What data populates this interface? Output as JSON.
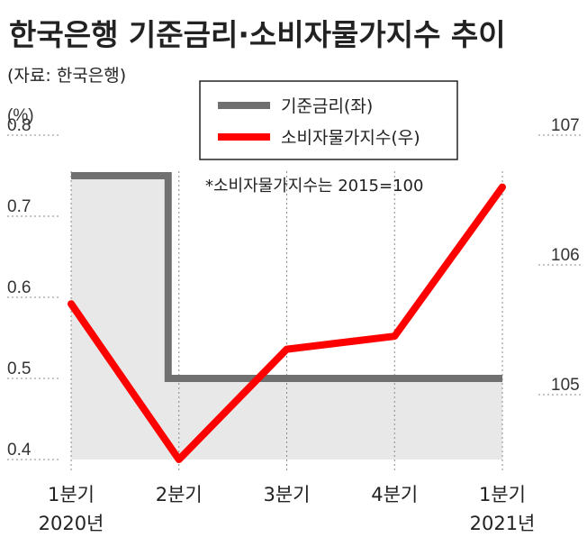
{
  "header": {
    "title": "한국은행 기준금리·소비자물가지수 추이",
    "source": "(자료: 한국은행)"
  },
  "legend": {
    "items": [
      {
        "label": "기준금리(좌)",
        "color": "#707070"
      },
      {
        "label": "소비자물가지수(우)",
        "color": "#ff0000"
      }
    ],
    "placement": "top-center",
    "note": "*소비자물가지수는 2015=100"
  },
  "colors": {
    "area_fill": "#e8e8e8",
    "rate_line": "#707070",
    "cpi_line": "#ff0000"
  },
  "chart_data": {
    "type": "line",
    "categories": [
      "1분기",
      "2분기",
      "3분기",
      "4분기",
      "1분기"
    ],
    "category_years": [
      "2020년",
      "",
      "",
      "",
      "2021년"
    ],
    "left_axis": {
      "unit": "(%)",
      "ylim": [
        0.4,
        0.8
      ],
      "ticks": [
        "0.8",
        "0.7",
        "0.6",
        "0.5",
        "0.4"
      ]
    },
    "right_axis": {
      "ylim": [
        104.5,
        107
      ],
      "ticks": [
        "107",
        "106",
        "105"
      ]
    },
    "series": [
      {
        "name": "기준금리(좌)",
        "axis": "left",
        "color": "#707070",
        "steps": [
          {
            "x": 0,
            "y": 0.75
          },
          {
            "x": 0.9,
            "y": 0.75
          },
          {
            "x": 0.9,
            "y": 0.5
          },
          {
            "x": 4,
            "y": 0.5
          }
        ]
      },
      {
        "name": "소비자물가지수(우)",
        "axis": "right",
        "color": "#ff0000",
        "values": [
          105.7,
          104.5,
          105.35,
          105.45,
          106.6
        ]
      }
    ],
    "grid": false
  }
}
